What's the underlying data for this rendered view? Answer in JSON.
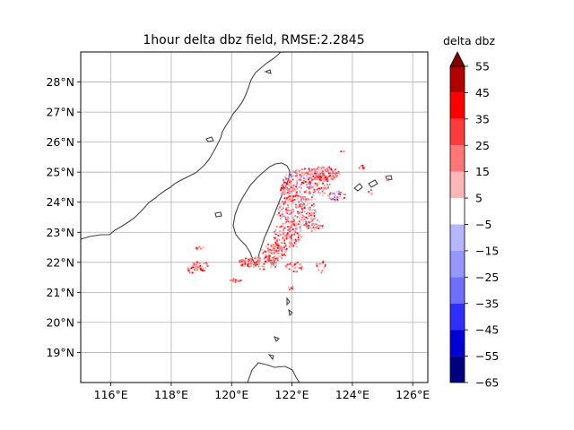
{
  "title": "1hour delta dbz field, RMSE:2.2845",
  "colorbar": {
    "label": "delta dbz",
    "ticks": [
      "55",
      "45",
      "35",
      "25",
      "15",
      "5",
      "−5",
      "−15",
      "−25",
      "−35",
      "−45",
      "−55",
      "−65"
    ],
    "bins": [
      {
        "range": [
          45,
          55
        ],
        "color": "#b20000"
      },
      {
        "range": [
          35,
          45
        ],
        "color": "#ff0000"
      },
      {
        "range": [
          25,
          35
        ],
        "color": "#ff3a3a"
      },
      {
        "range": [
          15,
          25
        ],
        "color": "#ff7676"
      },
      {
        "range": [
          5,
          15
        ],
        "color": "#ffb6b6"
      },
      {
        "range": [
          -5,
          5
        ],
        "color": "#ffffff"
      },
      {
        "range": [
          -15,
          -5
        ],
        "color": "#b6b6ff"
      },
      {
        "range": [
          -25,
          -15
        ],
        "color": "#9696ff"
      },
      {
        "range": [
          -35,
          -25
        ],
        "color": "#6e6eff"
      },
      {
        "range": [
          -45,
          -35
        ],
        "color": "#2e2eff"
      },
      {
        "range": [
          -55,
          -45
        ],
        "color": "#0000d6"
      },
      {
        "range": [
          -65,
          -55
        ],
        "color": "#000080"
      }
    ],
    "extend_color": "#800000"
  },
  "map": {
    "lon_range": [
      115,
      126.5
    ],
    "lat_range": [
      18,
      29
    ],
    "lon_ticks": [
      {
        "value": 116,
        "label": "116°E"
      },
      {
        "value": 118,
        "label": "118°E"
      },
      {
        "value": 120,
        "label": "120°E"
      },
      {
        "value": 122,
        "label": "122°E"
      },
      {
        "value": 124,
        "label": "124°E"
      },
      {
        "value": 126,
        "label": "126°E"
      }
    ],
    "lat_ticks": [
      {
        "value": 19,
        "label": "19°N"
      },
      {
        "value": 20,
        "label": "20°N"
      },
      {
        "value": 21,
        "label": "21°N"
      },
      {
        "value": 22,
        "label": "22°N"
      },
      {
        "value": 23,
        "label": "23°N"
      },
      {
        "value": 24,
        "label": "24°N"
      },
      {
        "value": 25,
        "label": "25°N"
      },
      {
        "value": 26,
        "label": "26°N"
      },
      {
        "value": 27,
        "label": "27°N"
      },
      {
        "value": 28,
        "label": "28°N"
      }
    ],
    "grid": true,
    "coast_color": "#444444"
  }
}
